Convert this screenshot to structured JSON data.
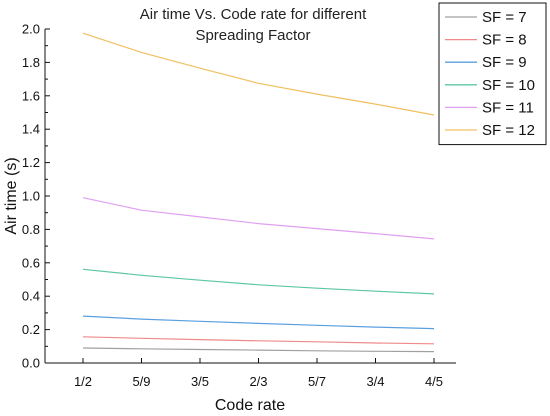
{
  "chart_data": {
    "type": "line",
    "title": "Air time Vs. Code rate for different Spreading Factor",
    "title_lines": [
      "Air time Vs. Code rate for different",
      "Spreading Factor"
    ],
    "xlabel": "Code rate",
    "ylabel": "Air time (s)",
    "categories": [
      "1/2",
      "5/9",
      "3/5",
      "2/3",
      "5/7",
      "3/4",
      "4/5"
    ],
    "ylim": [
      0.0,
      2.0
    ],
    "yticks": [
      "0.0",
      "0.2",
      "0.4",
      "0.6",
      "0.8",
      "1.0",
      "1.2",
      "1.4",
      "1.6",
      "1.8",
      "2.0"
    ],
    "grid": false,
    "legend_position": "top-right",
    "series": [
      {
        "name": "SF = 7",
        "color": "#a0a0a0",
        "values": [
          0.09,
          0.085,
          0.081,
          0.077,
          0.073,
          0.07,
          0.068
        ]
      },
      {
        "name": "SF = 8",
        "color": "#f08a8a",
        "values": [
          0.157,
          0.148,
          0.14,
          0.133,
          0.127,
          0.12,
          0.115
        ]
      },
      {
        "name": "SF = 9",
        "color": "#5a9fe0",
        "values": [
          0.281,
          0.263,
          0.25,
          0.237,
          0.226,
          0.215,
          0.206
        ]
      },
      {
        "name": "SF = 10",
        "color": "#5ec8a0",
        "values": [
          0.561,
          0.525,
          0.496,
          0.468,
          0.448,
          0.43,
          0.414
        ]
      },
      {
        "name": "SF = 11",
        "color": "#e0a0f0",
        "values": [
          0.99,
          0.915,
          0.875,
          0.835,
          0.805,
          0.775,
          0.743
        ]
      },
      {
        "name": "SF = 12",
        "color": "#f0c060",
        "values": [
          1.975,
          1.86,
          1.765,
          1.675,
          1.61,
          1.55,
          1.485
        ]
      }
    ]
  }
}
